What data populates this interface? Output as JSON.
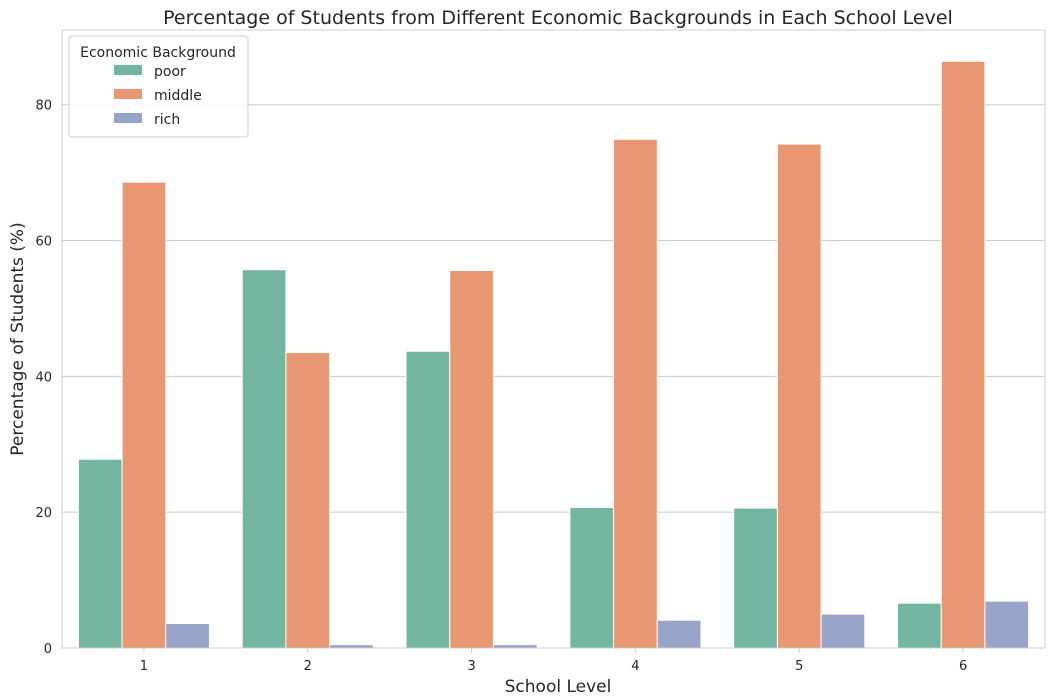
{
  "chart_data": {
    "type": "bar",
    "title": "Percentage of Students from Different Economic Backgrounds in Each School Level",
    "xlabel": "School Level",
    "ylabel": "Percentage of Students (%)",
    "categories": [
      "1",
      "2",
      "3",
      "4",
      "5",
      "6"
    ],
    "ylim": [
      0,
      91
    ],
    "yticks": [
      0,
      20,
      40,
      60,
      80
    ],
    "grid": true,
    "legend": {
      "title": "Economic Background",
      "placement": "top-left"
    },
    "series": [
      {
        "name": "poor",
        "color": "#72b5a0",
        "values": [
          27.8,
          55.7,
          43.7,
          20.7,
          20.6,
          6.6
        ]
      },
      {
        "name": "middle",
        "color": "#e99673",
        "values": [
          68.6,
          43.5,
          55.6,
          74.9,
          74.2,
          86.4
        ]
      },
      {
        "name": "rich",
        "color": "#97a4c8",
        "values": [
          3.6,
          0.5,
          0.5,
          4.1,
          5.0,
          6.9
        ]
      }
    ]
  }
}
